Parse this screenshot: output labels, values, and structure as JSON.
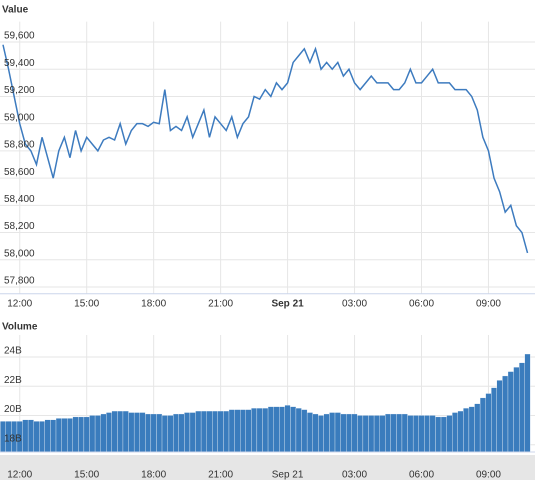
{
  "chart_data": [
    {
      "type": "line",
      "y_label": "Value",
      "color": "#3d7bbf",
      "categories": [
        "11:15",
        "11:30",
        "11:45",
        "12:00",
        "12:15",
        "12:30",
        "12:45",
        "13:00",
        "13:15",
        "13:30",
        "13:45",
        "14:00",
        "14:15",
        "14:30",
        "14:45",
        "15:00",
        "15:15",
        "15:30",
        "15:45",
        "16:00",
        "16:15",
        "16:30",
        "16:45",
        "17:00",
        "17:15",
        "17:30",
        "17:45",
        "18:00",
        "18:15",
        "18:30",
        "18:45",
        "19:00",
        "19:15",
        "19:30",
        "19:45",
        "20:00",
        "20:15",
        "20:30",
        "20:45",
        "21:00",
        "21:15",
        "21:30",
        "21:45",
        "22:00",
        "22:15",
        "22:30",
        "22:45",
        "23:00",
        "23:15",
        "23:30",
        "23:45",
        "00:00",
        "00:15",
        "00:30",
        "00:45",
        "01:00",
        "01:15",
        "01:30",
        "01:45",
        "02:00",
        "02:15",
        "02:30",
        "02:45",
        "03:00",
        "03:15",
        "03:30",
        "03:45",
        "04:00",
        "04:15",
        "04:30",
        "04:45",
        "05:00",
        "05:15",
        "05:30",
        "05:45",
        "06:00",
        "06:15",
        "06:30",
        "06:45",
        "07:00",
        "07:15",
        "07:30",
        "07:45",
        "08:00",
        "08:15",
        "08:30",
        "08:45",
        "09:00",
        "09:15",
        "09:30",
        "09:45",
        "10:00",
        "10:15",
        "10:30",
        "10:45"
      ],
      "values": [
        59580,
        59400,
        59200,
        59000,
        58850,
        58800,
        58700,
        58900,
        58750,
        58600,
        58800,
        58900,
        58750,
        58950,
        58800,
        58900,
        58850,
        58800,
        58880,
        58900,
        58880,
        59000,
        58850,
        58950,
        59000,
        59000,
        58980,
        59010,
        59000,
        59250,
        58950,
        58980,
        58950,
        59050,
        58900,
        59000,
        59100,
        58900,
        59050,
        59000,
        58950,
        59050,
        58900,
        59000,
        59050,
        59200,
        59180,
        59250,
        59200,
        59300,
        59250,
        59300,
        59450,
        59500,
        59550,
        59450,
        59550,
        59400,
        59450,
        59400,
        59450,
        59350,
        59400,
        59300,
        59250,
        59300,
        59350,
        59300,
        59300,
        59300,
        59250,
        59250,
        59300,
        59400,
        59300,
        59300,
        59350,
        59400,
        59300,
        59300,
        59300,
        59250,
        59250,
        59250,
        59200,
        59100,
        58900,
        58800,
        58600,
        58500,
        58350,
        58400,
        58250,
        58200,
        58050
      ],
      "ylim": [
        57750,
        59750
      ],
      "yticks": [
        {
          "value": 57800,
          "label": "57,800"
        },
        {
          "value": 58000,
          "label": "58,000"
        },
        {
          "value": 58200,
          "label": "58,200"
        },
        {
          "value": 58400,
          "label": "58,400"
        },
        {
          "value": 58600,
          "label": "58,600"
        },
        {
          "value": 58800,
          "label": "58,800"
        },
        {
          "value": 59000,
          "label": "59,000"
        },
        {
          "value": 59200,
          "label": "59,200"
        },
        {
          "value": 59400,
          "label": "59,400"
        },
        {
          "value": 59600,
          "label": "59,600"
        }
      ],
      "xticks": [
        "12:00",
        "15:00",
        "18:00",
        "21:00",
        {
          "value": "00:00",
          "label": "Sep 21"
        },
        "03:00",
        "06:00",
        "09:00"
      ],
      "grid": true
    },
    {
      "type": "bar",
      "y_label": "Volume",
      "color": "#3a7cbd",
      "values": [
        19.6,
        19.6,
        19.6,
        19.6,
        19.7,
        19.7,
        19.6,
        19.6,
        19.7,
        19.7,
        19.8,
        19.8,
        19.8,
        19.9,
        19.9,
        19.9,
        20.0,
        20.0,
        20.1,
        20.2,
        20.3,
        20.3,
        20.3,
        20.2,
        20.2,
        20.2,
        20.1,
        20.1,
        20.1,
        20.0,
        20.0,
        20.1,
        20.1,
        20.2,
        20.2,
        20.3,
        20.3,
        20.3,
        20.3,
        20.3,
        20.3,
        20.4,
        20.4,
        20.4,
        20.4,
        20.5,
        20.5,
        20.5,
        20.6,
        20.6,
        20.6,
        20.7,
        20.6,
        20.5,
        20.4,
        20.2,
        20.1,
        20.0,
        20.1,
        20.2,
        20.2,
        20.1,
        20.1,
        20.1,
        20.0,
        20.0,
        20.0,
        20.0,
        20.0,
        20.1,
        20.1,
        20.1,
        20.1,
        20.0,
        20.0,
        20.0,
        20.0,
        20.0,
        19.9,
        19.9,
        20.0,
        20.2,
        20.3,
        20.5,
        20.6,
        20.8,
        21.2,
        21.5,
        21.9,
        22.4,
        22.7,
        23.0,
        23.3,
        23.6,
        24.2
      ],
      "ylim": [
        17.5,
        25.5
      ],
      "yticks": [
        {
          "value": 18,
          "label": "18B"
        },
        {
          "value": 20,
          "label": "20B"
        },
        {
          "value": 22,
          "label": "22B"
        },
        {
          "value": 24,
          "label": "24B"
        }
      ],
      "grid": true
    }
  ]
}
